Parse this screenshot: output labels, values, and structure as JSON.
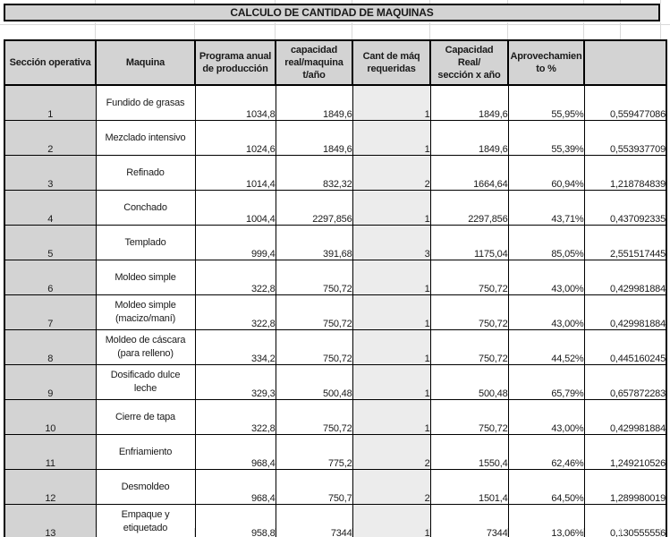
{
  "title": "CALCULO DE CANTIDAD DE MAQUINAS",
  "table": {
    "headers": [
      "Sección operativa",
      "Maquina",
      "Programa anual\nde producción",
      "capacidad\nreal/maquina\nt/año",
      "Cant de máq\nrequeridas",
      "Capacidad\nReal/\nsección x año",
      "Aprovechamien\nto %",
      ""
    ],
    "rows": [
      {
        "cells": [
          "1",
          "Fundido de grasas",
          "1034,8",
          "1849,6",
          "1",
          "1849,6",
          "55,95%",
          "0,559477086"
        ]
      },
      {
        "cells": [
          "2",
          "Mezclado intensivo",
          "1024,6",
          "1849,6",
          "1",
          "1849,6",
          "55,39%",
          "0,553937709"
        ]
      },
      {
        "cells": [
          "3",
          "Refinado",
          "1014,4",
          "832,32",
          "2",
          "1664,64",
          "60,94%",
          "1,218784839"
        ]
      },
      {
        "cells": [
          "4",
          "Conchado",
          "1004,4",
          "2297,856",
          "1",
          "2297,856",
          "43,71%",
          "0,437092335"
        ]
      },
      {
        "cells": [
          "5",
          "Templado",
          "999,4",
          "391,68",
          "3",
          "1175,04",
          "85,05%",
          "2,551517445"
        ]
      },
      {
        "cells": [
          "6",
          "Moldeo simple",
          "322,8",
          "750,72",
          "1",
          "750,72",
          "43,00%",
          "0,429981884"
        ]
      },
      {
        "cells": [
          "7",
          "Moldeo simple\n(macizo/maní)",
          "322,8",
          "750,72",
          "1",
          "750,72",
          "43,00%",
          "0,429981884"
        ]
      },
      {
        "cells": [
          "8",
          "Moldeo de cáscara\n(para relleno)",
          "334,2",
          "750,72",
          "1",
          "750,72",
          "44,52%",
          "0,445160245"
        ]
      },
      {
        "cells": [
          "9",
          "Dosificado dulce\nleche",
          "329,3",
          "500,48",
          "1",
          "500,48",
          "65,79%",
          "0,657872283"
        ]
      },
      {
        "cells": [
          "10",
          "Cierre de tapa",
          "322,8",
          "750,72",
          "1",
          "750,72",
          "43,00%",
          "0,429981884"
        ]
      },
      {
        "cells": [
          "11",
          "Enfriamiento",
          "968,4",
          "775,2",
          "2",
          "1550,4",
          "62,46%",
          "1,249210526"
        ]
      },
      {
        "cells": [
          "12",
          "Desmoldeo",
          "968,4",
          "750,7",
          "2",
          "1501,4",
          "64,50%",
          "1,289980019"
        ]
      },
      {
        "cells": [
          "13",
          "Empaque y\netiquetado",
          "958,8",
          "7344",
          "1",
          "7344",
          "13,06%",
          "0,130555556"
        ]
      }
    ]
  },
  "colors": {
    "header_bg": "#d3d3d3",
    "highlight_bg": "#ececec",
    "border": "#000000",
    "gridline": "#d9d9d9"
  }
}
